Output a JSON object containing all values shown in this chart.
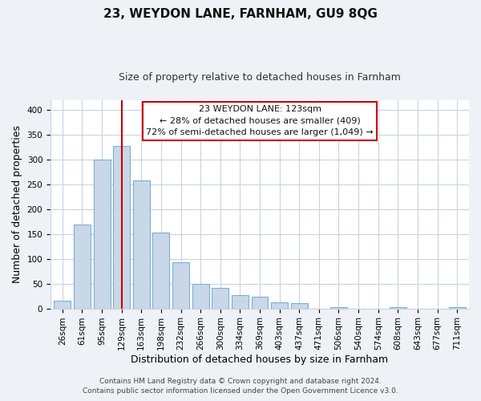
{
  "title": "23, WEYDON LANE, FARNHAM, GU9 8QG",
  "subtitle": "Size of property relative to detached houses in Farnham",
  "xlabel": "Distribution of detached houses by size in Farnham",
  "ylabel": "Number of detached properties",
  "bar_labels": [
    "26sqm",
    "61sqm",
    "95sqm",
    "129sqm",
    "163sqm",
    "198sqm",
    "232sqm",
    "266sqm",
    "300sqm",
    "334sqm",
    "369sqm",
    "403sqm",
    "437sqm",
    "471sqm",
    "506sqm",
    "540sqm",
    "574sqm",
    "608sqm",
    "643sqm",
    "677sqm",
    "711sqm"
  ],
  "bar_values": [
    15,
    170,
    300,
    328,
    258,
    153,
    93,
    50,
    42,
    27,
    23,
    12,
    11,
    0,
    3,
    0,
    0,
    2,
    0,
    0,
    2
  ],
  "bar_color": "#c8d8e8",
  "bar_edge_color": "#7bafd4",
  "highlight_bar_index": 3,
  "highlight_line_color": "#cc0000",
  "ylim": [
    0,
    420
  ],
  "yticks": [
    0,
    50,
    100,
    150,
    200,
    250,
    300,
    350,
    400
  ],
  "annotation_title": "23 WEYDON LANE: 123sqm",
  "annotation_line1": "← 28% of detached houses are smaller (409)",
  "annotation_line2": "72% of semi-detached houses are larger (1,049) →",
  "annotation_box_color": "#ffffff",
  "annotation_box_edge": "#cc0000",
  "footer_line1": "Contains HM Land Registry data © Crown copyright and database right 2024.",
  "footer_line2": "Contains public sector information licensed under the Open Government Licence v3.0.",
  "bg_color": "#eef2f7",
  "plot_bg_color": "#ffffff",
  "grid_color": "#c8d4e0",
  "title_fontsize": 11,
  "subtitle_fontsize": 9,
  "tick_fontsize": 7.5,
  "ylabel_fontsize": 9,
  "xlabel_fontsize": 9,
  "footer_fontsize": 6.5
}
